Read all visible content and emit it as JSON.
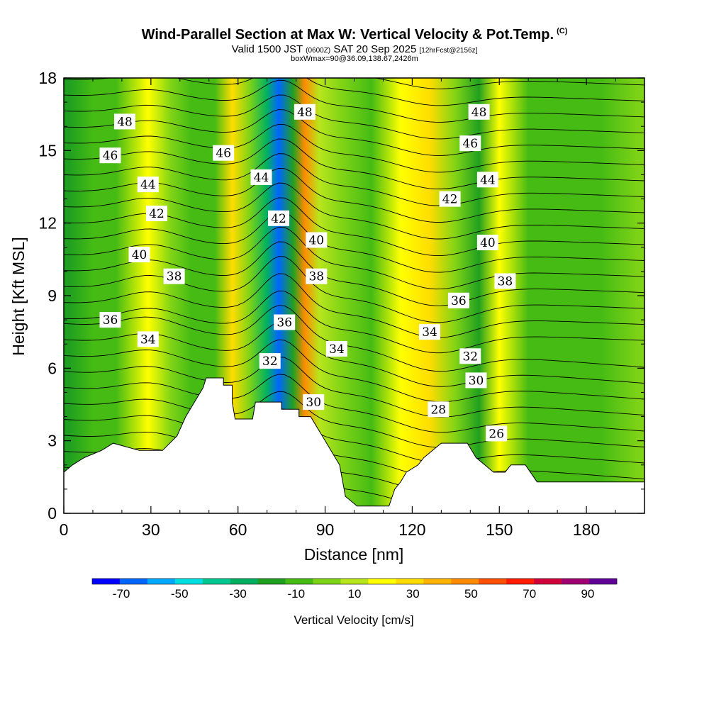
{
  "chart_data": {
    "type": "heatmap",
    "title": "Wind-Parallel Section at Max W: Vertical Velocity & Pot.Temp.",
    "title_mark": "(C)",
    "subtitle": {
      "valid_prefix": "Valid 1500 JST",
      "utc": "(0600Z)",
      "date": "SAT 20 Sep 2025",
      "forecast": "[12hrFcst@2156z]"
    },
    "note": "boxWmax=90@36.09,138.67,2426m",
    "xlabel": "Distance [nm]",
    "ylabel": "Height [Kft MSL]",
    "xlim": [
      0,
      200
    ],
    "ylim": [
      0,
      18
    ],
    "x_ticks": [
      0,
      30,
      60,
      90,
      120,
      150,
      180
    ],
    "y_ticks": [
      0,
      3,
      6,
      9,
      12,
      15,
      18
    ],
    "colorbar": {
      "label": "Vertical Velocity [cm/s]",
      "tick_labels": [
        -70,
        -50,
        -30,
        -10,
        10,
        30,
        50,
        70,
        90
      ],
      "bounds": [
        -80,
        100
      ],
      "colors": [
        "#0000ff",
        "#0066ff",
        "#00aaff",
        "#00e0e0",
        "#00c890",
        "#00b060",
        "#20a020",
        "#45bb14",
        "#7fd316",
        "#b8e61c",
        "#ffff00",
        "#ffdd00",
        "#ffb400",
        "#ff8c00",
        "#ff5000",
        "#ff1a00",
        "#d0003a",
        "#a00070",
        "#600098"
      ]
    },
    "theta_contour_labels": [
      {
        "value": 48,
        "x": 21,
        "y": 16.2
      },
      {
        "value": 46,
        "x": 16,
        "y": 14.8
      },
      {
        "value": 44,
        "x": 29,
        "y": 13.6
      },
      {
        "value": 42,
        "x": 32,
        "y": 12.4
      },
      {
        "value": 40,
        "x": 26,
        "y": 10.7
      },
      {
        "value": 38,
        "x": 38,
        "y": 9.8
      },
      {
        "value": 36,
        "x": 16,
        "y": 8.0
      },
      {
        "value": 34,
        "x": 29,
        "y": 7.2
      },
      {
        "value": 46,
        "x": 55,
        "y": 14.9
      },
      {
        "value": 44,
        "x": 68,
        "y": 13.9
      },
      {
        "value": 42,
        "x": 74,
        "y": 12.2
      },
      {
        "value": 48,
        "x": 83,
        "y": 16.6
      },
      {
        "value": 40,
        "x": 87,
        "y": 11.3
      },
      {
        "value": 38,
        "x": 87,
        "y": 9.8
      },
      {
        "value": 36,
        "x": 76,
        "y": 7.9
      },
      {
        "value": 32,
        "x": 71,
        "y": 6.3
      },
      {
        "value": 34,
        "x": 94,
        "y": 6.8
      },
      {
        "value": 30,
        "x": 86,
        "y": 4.6
      },
      {
        "value": 48,
        "x": 143,
        "y": 16.6
      },
      {
        "value": 46,
        "x": 140,
        "y": 15.3
      },
      {
        "value": 44,
        "x": 146,
        "y": 13.8
      },
      {
        "value": 42,
        "x": 133,
        "y": 13.0
      },
      {
        "value": 40,
        "x": 146,
        "y": 11.2
      },
      {
        "value": 38,
        "x": 152,
        "y": 9.6
      },
      {
        "value": 36,
        "x": 136,
        "y": 8.8
      },
      {
        "value": 34,
        "x": 126,
        "y": 7.5
      },
      {
        "value": 32,
        "x": 140,
        "y": 6.5
      },
      {
        "value": 30,
        "x": 142,
        "y": 5.5
      },
      {
        "value": 28,
        "x": 129,
        "y": 4.3
      },
      {
        "value": 26,
        "x": 149,
        "y": 3.3
      }
    ],
    "terrain_kft": [
      [
        0,
        1.7
      ],
      [
        3,
        2.0
      ],
      [
        7,
        2.3
      ],
      [
        13,
        2.6
      ],
      [
        17,
        2.9
      ],
      [
        26,
        2.6
      ],
      [
        34,
        2.6
      ],
      [
        39,
        3.2
      ],
      [
        42,
        4.0
      ],
      [
        45,
        4.6
      ],
      [
        48,
        5.2
      ],
      [
        49,
        5.6
      ],
      [
        55,
        5.6
      ],
      [
        55,
        5.3
      ],
      [
        58,
        5.3
      ],
      [
        58,
        4.6
      ],
      [
        59,
        3.9
      ],
      [
        65,
        3.9
      ],
      [
        66,
        4.6
      ],
      [
        75,
        4.6
      ],
      [
        75,
        4.3
      ],
      [
        81,
        4.3
      ],
      [
        81,
        4.0
      ],
      [
        85,
        4.0
      ],
      [
        87,
        3.6
      ],
      [
        89,
        3.2
      ],
      [
        92,
        2.6
      ],
      [
        95,
        2.0
      ],
      [
        97,
        0.7
      ],
      [
        101,
        0.3
      ],
      [
        112,
        0.3
      ],
      [
        114,
        1.0
      ],
      [
        116,
        1.3
      ],
      [
        118,
        1.7
      ],
      [
        122,
        2.0
      ],
      [
        124,
        2.3
      ],
      [
        127,
        2.6
      ],
      [
        130,
        2.9
      ],
      [
        139,
        2.9
      ],
      [
        142,
        2.3
      ],
      [
        145,
        2.0
      ],
      [
        148,
        1.7
      ],
      [
        152,
        1.7
      ],
      [
        154,
        2.0
      ],
      [
        159,
        2.0
      ],
      [
        163,
        1.3
      ],
      [
        200,
        1.3
      ]
    ],
    "w_columns_cm_s": [
      {
        "x": 2,
        "w": -15
      },
      {
        "x": 10,
        "w": -5
      },
      {
        "x": 18,
        "w": -10
      },
      {
        "x": 29,
        "w": 15
      },
      {
        "x": 37,
        "w": 5
      },
      {
        "x": 44,
        "w": -10
      },
      {
        "x": 52,
        "w": -5
      },
      {
        "x": 58,
        "w": 30
      },
      {
        "x": 64,
        "w": 5
      },
      {
        "x": 70,
        "w": -30
      },
      {
        "x": 74,
        "w": -65
      },
      {
        "x": 79,
        "w": -20
      },
      {
        "x": 83,
        "w": 50
      },
      {
        "x": 88,
        "w": 10
      },
      {
        "x": 96,
        "w": 5
      },
      {
        "x": 106,
        "w": -10
      },
      {
        "x": 116,
        "w": 15
      },
      {
        "x": 126,
        "w": 25
      },
      {
        "x": 135,
        "w": 5
      },
      {
        "x": 143,
        "w": -15
      },
      {
        "x": 150,
        "w": 20
      },
      {
        "x": 160,
        "w": -10
      },
      {
        "x": 170,
        "w": -5
      },
      {
        "x": 185,
        "w": -5
      },
      {
        "x": 198,
        "w": 5
      }
    ]
  }
}
